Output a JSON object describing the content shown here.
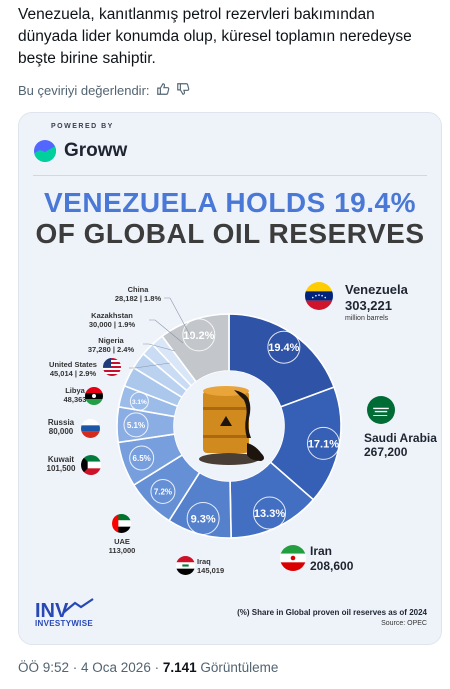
{
  "tweet": {
    "text": "Venezuela, kanıtlanmış petrol rezervleri bakımından dünyada lider konumda olup, küresel toplamın neredeyse beşte birine sahiptir.",
    "translate_prompt": "Bu çeviriyi değerlendir:",
    "time": "ÖÖ 9:52 · 4 Oca 2026 · ",
    "views": "7.141",
    "views_label": " Görüntüleme"
  },
  "infographic": {
    "powered_by": "POWERED BY",
    "brand": "Groww",
    "headline_line1": "VENEZUELA HOLDS 19.4%",
    "headline_line2": "OF GLOBAL OIL RESERVES",
    "footnote": "(%) Share in Global proven oil reserves as of 2024",
    "source": "Source: OPEC",
    "publisher": "INVESTYWISE",
    "publisher_mark": "INV"
  },
  "chart_data": {
    "type": "pie",
    "unit": "million barrels",
    "slices": [
      {
        "country": "Venezuela",
        "value": 303221,
        "value_label": "303,221",
        "pct": 19.4,
        "pct_label": "19.4%",
        "color": "#2f53a6"
      },
      {
        "country": "Saudi Arabia",
        "value": 267200,
        "value_label": "267,200",
        "pct": 17.1,
        "pct_label": "17.1%",
        "color": "#3660b5"
      },
      {
        "country": "Iran",
        "value": 208600,
        "value_label": "208,600",
        "pct": 13.3,
        "pct_label": "13.3%",
        "color": "#436fc2"
      },
      {
        "country": "Iraq",
        "value": 145019,
        "value_label": "145,019",
        "pct": 9.3,
        "pct_label": "9.3%",
        "color": "#5480cc"
      },
      {
        "country": "UAE",
        "value": 113000,
        "value_label": "113,000",
        "pct": 7.2,
        "pct_label": "7.2%",
        "color": "#6690d6"
      },
      {
        "country": "Kuwait",
        "value": 101500,
        "value_label": "101,500",
        "pct": 6.5,
        "pct_label": "6.5%",
        "color": "#789fdd"
      },
      {
        "country": "Russia",
        "value": 80000,
        "value_label": "80,000",
        "pct": 5.1,
        "pct_label": "5.1%",
        "color": "#8aade3"
      },
      {
        "country": "Libya",
        "value": 48363,
        "value_label": "48,363",
        "pct": 3.1,
        "pct_label": "3.1%",
        "color": "#9bbbe8"
      },
      {
        "country": "United States",
        "value": 45014,
        "value_label": "45,014 | 2.9%",
        "pct": 2.9,
        "pct_label": "",
        "color": "#abc7ec"
      },
      {
        "country": "Nigeria",
        "value": 37280,
        "value_label": "37,280 | 2.4%",
        "pct": 2.4,
        "pct_label": "",
        "color": "#bad2f0"
      },
      {
        "country": "Kazakhstan",
        "value": 30000,
        "value_label": "30,000 | 1.9%",
        "pct": 1.9,
        "pct_label": "",
        "color": "#c9dcf4"
      },
      {
        "country": "China",
        "value": 28182,
        "value_label": "28,182 | 1.8%",
        "pct": 1.8,
        "pct_label": "",
        "color": "#d8e6f7"
      },
      {
        "country": "",
        "value": null,
        "value_label": "",
        "pct": 10.2,
        "pct_label": "10.2%",
        "color": "#c3c6cb"
      }
    ]
  },
  "colors": {
    "brand_blue": "#4a78d6",
    "text_dark": "#0f1419",
    "text_muted": "#536471"
  }
}
